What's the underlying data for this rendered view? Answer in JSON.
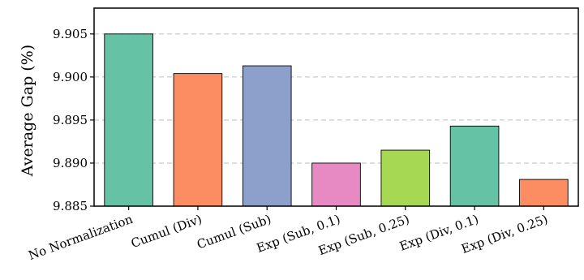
{
  "chart_data": {
    "type": "bar",
    "title": "",
    "xlabel": "",
    "ylabel": "Average Gap (%)",
    "categories": [
      "No Normalization",
      "Cumul (Div)",
      "Cumul (Sub)",
      "Exp (Sub, 0.1)",
      "Exp (Sub, 0.25)",
      "Exp (Div, 0.1)",
      "Exp (Div, 0.25)"
    ],
    "values": [
      9.905,
      9.9004,
      9.9013,
      9.89,
      9.8915,
      9.8943,
      9.8881
    ],
    "ylim": [
      9.885,
      9.908
    ],
    "yticks": [
      "9.885",
      "9.890",
      "9.895",
      "9.900",
      "9.905"
    ],
    "grid": "horizontal-dashed",
    "bar_colors": [
      "#66c2a5",
      "#fc8d62",
      "#8da0cb",
      "#e78ac3",
      "#a6d854",
      "#66c2a5",
      "#fc8d62"
    ]
  }
}
